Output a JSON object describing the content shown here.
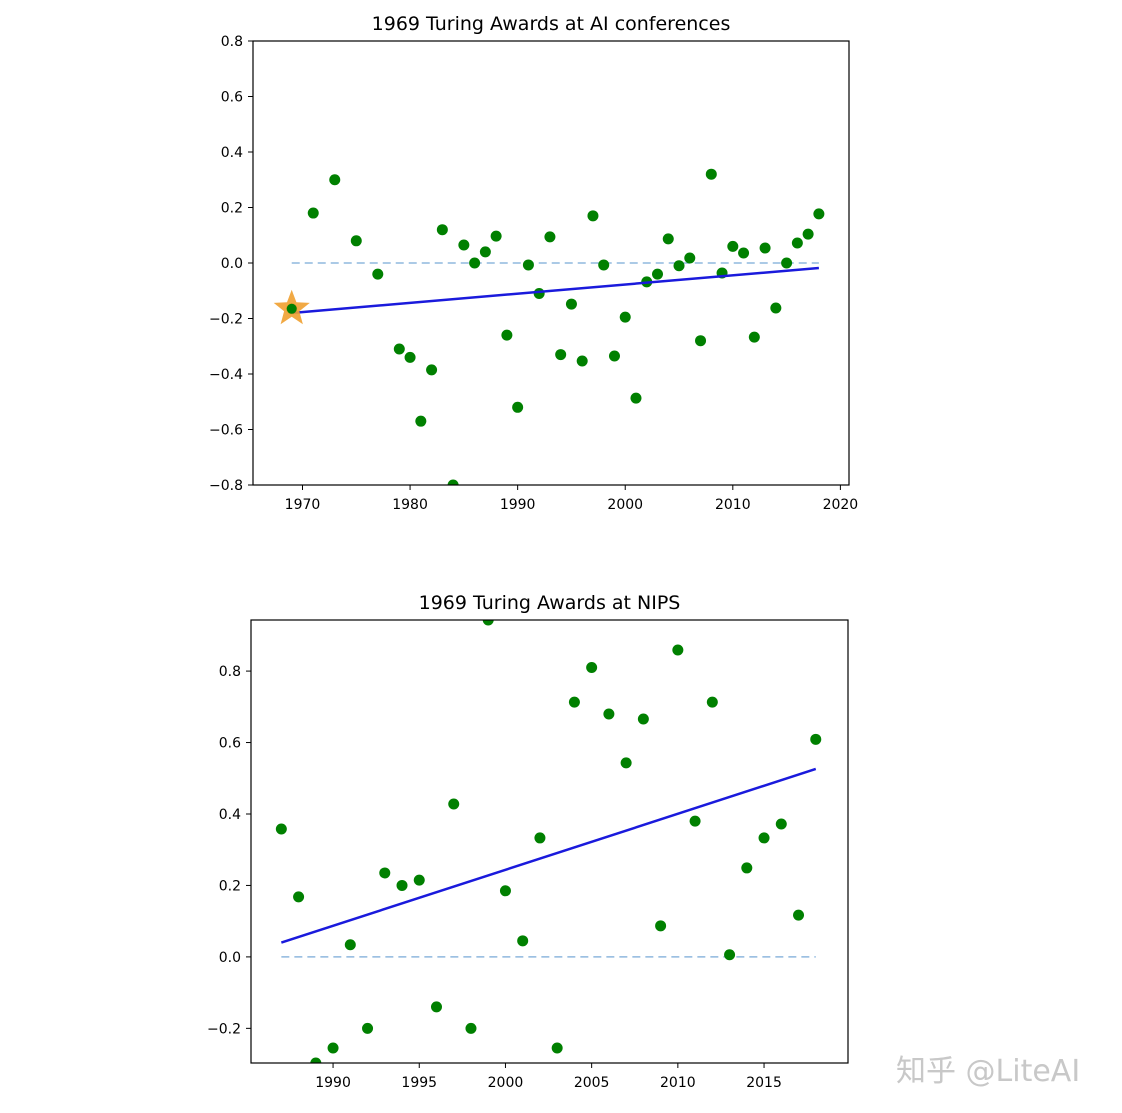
{
  "chart_data": [
    {
      "type": "scatter",
      "title": "1969 Turing Awards at AI conferences",
      "xlabel": "",
      "ylabel": "",
      "xlim": [
        1965.4,
        2020.8
      ],
      "ylim": [
        -0.8,
        0.8
      ],
      "xticks": [
        1970,
        1980,
        1990,
        2000,
        2010,
        2020
      ],
      "yticks": [
        -0.8,
        -0.6,
        -0.4,
        -0.2,
        0.0,
        0.2,
        0.4,
        0.6,
        0.8
      ],
      "ytick_labels": [
        "−0.8",
        "−0.6",
        "−0.4",
        "−0.2",
        "0.0",
        "0.2",
        "0.4",
        "0.6",
        "0.8"
      ],
      "grid": false,
      "points_color": "#008000",
      "x": [
        1969,
        1971,
        1973,
        1975,
        1977,
        1979,
        1980,
        1981,
        1982,
        1983,
        1984,
        1985,
        1986,
        1987,
        1988,
        1989,
        1990,
        1991,
        1992,
        1993,
        1994,
        1995,
        1996,
        1997,
        1998,
        1999,
        2000,
        2001,
        2002,
        2003,
        2004,
        2005,
        2006,
        2007,
        2008,
        2009,
        2010,
        2011,
        2012,
        2013,
        2014,
        2015,
        2016,
        2017,
        2018
      ],
      "y": [
        -0.165,
        0.18,
        0.3,
        0.08,
        -0.04,
        -0.31,
        -0.34,
        -0.57,
        -0.385,
        0.12,
        -0.8,
        0.065,
        0.0,
        0.04,
        0.097,
        -0.26,
        -0.52,
        -0.007,
        -0.11,
        0.094,
        -0.33,
        -0.148,
        -0.353,
        0.17,
        -0.007,
        -0.335,
        -0.195,
        -0.487,
        -0.068,
        -0.04,
        0.087,
        -0.01,
        0.018,
        -0.28,
        0.32,
        -0.036,
        0.06,
        0.036,
        -0.267,
        0.054,
        -0.162,
        0.0,
        0.072,
        0.104,
        0.177
      ],
      "highlight": {
        "x": 1969,
        "y": -0.165,
        "marker": "star",
        "color": "#f0a030"
      },
      "trend_line": {
        "x": [
          1969,
          2018
        ],
        "y": [
          -0.18,
          -0.018
        ],
        "color": "#1a1adc"
      },
      "zero_line": {
        "x": [
          1969,
          2018
        ],
        "y": 0,
        "style": "dashed",
        "color": "#8fb8de"
      }
    },
    {
      "type": "scatter",
      "title": "1969 Turing Awards at NIPS",
      "xlabel": "",
      "ylabel": "",
      "xlim": [
        1985.24,
        2019.87
      ],
      "ylim": [
        -0.297,
        0.943
      ],
      "xticks": [
        1990,
        1995,
        2000,
        2005,
        2010,
        2015
      ],
      "yticks": [
        -0.2,
        0.0,
        0.2,
        0.4,
        0.6,
        0.8
      ],
      "ytick_labels": [
        "−0.2",
        "0.0",
        "0.2",
        "0.4",
        "0.6",
        "0.8"
      ],
      "grid": false,
      "points_color": "#008000",
      "x": [
        1987,
        1988,
        1989,
        1990,
        1991,
        1992,
        1993,
        1994,
        1995,
        1996,
        1997,
        1998,
        1999,
        2000,
        2001,
        2002,
        2003,
        2004,
        2005,
        2006,
        2007,
        2008,
        2009,
        2010,
        2011,
        2012,
        2013,
        2014,
        2015,
        2016,
        2017,
        2018
      ],
      "y": [
        0.358,
        0.168,
        -0.297,
        -0.255,
        0.034,
        -0.2,
        0.235,
        0.2,
        0.215,
        -0.14,
        0.428,
        -0.2,
        0.943,
        0.185,
        0.045,
        0.333,
        -0.255,
        0.713,
        0.81,
        0.68,
        0.543,
        0.666,
        0.087,
        0.859,
        0.38,
        0.713,
        0.006,
        0.249,
        0.333,
        0.372,
        0.117,
        0.609
      ],
      "trend_line": {
        "x": [
          1987,
          2018
        ],
        "y": [
          0.04,
          0.526
        ],
        "color": "#1a1adc"
      },
      "zero_line": {
        "x": [
          1987,
          2018
        ],
        "y": 0,
        "style": "dashed",
        "color": "#8fb8de"
      }
    }
  ],
  "watermark": "知乎 @LiteAI"
}
